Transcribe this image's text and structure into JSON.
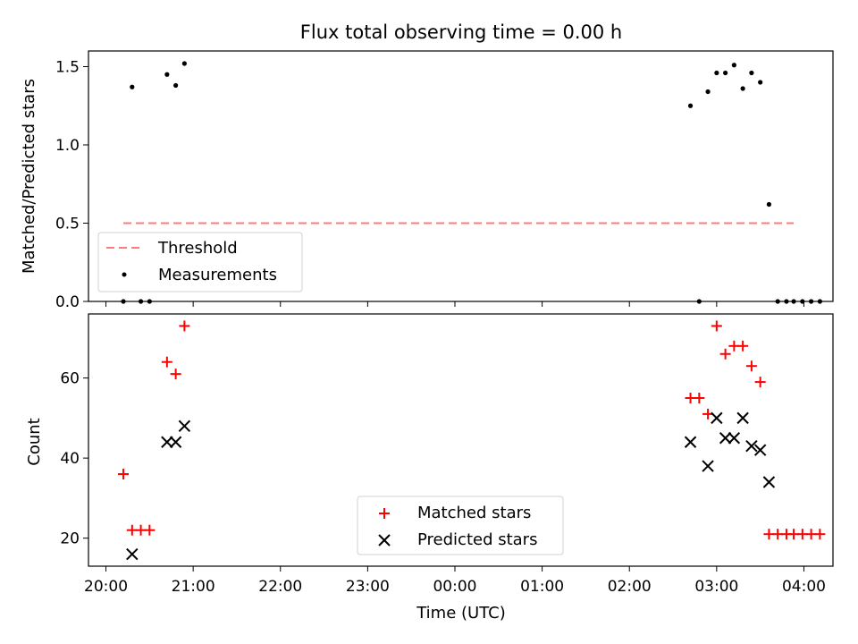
{
  "chart_data": [
    {
      "type": "scatter",
      "title": "Flux total observing time = 0.00 h",
      "xlabel": "",
      "ylabel": "Matched/Predicted stars",
      "xlim": [
        "19:48",
        "04:20"
      ],
      "ylim": [
        0,
        1.6
      ],
      "grid": false,
      "yticks": [
        "0.0",
        "0.5",
        "1.0",
        "1.5"
      ],
      "legend_position": "lower-left",
      "series": [
        {
          "name": "Threshold",
          "kind": "dashed-line",
          "color": "#ff7b7b",
          "points": [
            [
              "20:12",
              0.5
            ],
            [
              "03:53",
              0.5
            ]
          ]
        },
        {
          "name": "Measurements",
          "kind": "dot",
          "color": "#000000",
          "points": [
            [
              "20:12",
              0.0
            ],
            [
              "20:18",
              1.37
            ],
            [
              "20:24",
              0.0
            ],
            [
              "20:30",
              0.0
            ],
            [
              "20:42",
              1.45
            ],
            [
              "20:48",
              1.38
            ],
            [
              "20:54",
              1.52
            ],
            [
              "02:42",
              1.25
            ],
            [
              "02:48",
              0.0
            ],
            [
              "02:54",
              1.34
            ],
            [
              "03:00",
              1.46
            ],
            [
              "03:06",
              1.46
            ],
            [
              "03:12",
              1.51
            ],
            [
              "03:18",
              1.36
            ],
            [
              "03:24",
              1.46
            ],
            [
              "03:30",
              1.4
            ],
            [
              "03:36",
              0.62
            ],
            [
              "03:42",
              0.0
            ],
            [
              "03:48",
              0.0
            ],
            [
              "03:53",
              0.0
            ],
            [
              "03:59",
              0.0
            ],
            [
              "04:05",
              0.0
            ],
            [
              "04:11",
              0.0
            ]
          ]
        }
      ]
    },
    {
      "type": "scatter",
      "title": "",
      "xlabel": "Time (UTC)",
      "ylabel": "Count",
      "xlim": [
        "19:48",
        "04:20"
      ],
      "ylim": [
        13,
        76
      ],
      "grid": false,
      "yticks": [
        "20",
        "40",
        "60"
      ],
      "xticks": [
        "20:00",
        "21:00",
        "22:00",
        "23:00",
        "00:00",
        "01:00",
        "02:00",
        "03:00",
        "04:00"
      ],
      "legend_position": "lower-center",
      "series": [
        {
          "name": "Matched stars",
          "marker": "plus",
          "color": "#ff0000",
          "points": [
            [
              "20:12",
              36
            ],
            [
              "20:18",
              22
            ],
            [
              "20:24",
              22
            ],
            [
              "20:30",
              22
            ],
            [
              "20:42",
              64
            ],
            [
              "20:48",
              61
            ],
            [
              "20:54",
              73
            ],
            [
              "02:42",
              55
            ],
            [
              "02:48",
              55
            ],
            [
              "02:54",
              51
            ],
            [
              "03:00",
              73
            ],
            [
              "03:06",
              66
            ],
            [
              "03:12",
              68
            ],
            [
              "03:18",
              68
            ],
            [
              "03:24",
              63
            ],
            [
              "03:30",
              59
            ],
            [
              "03:36",
              21
            ],
            [
              "03:42",
              21
            ],
            [
              "03:48",
              21
            ],
            [
              "03:53",
              21
            ],
            [
              "03:59",
              21
            ],
            [
              "04:05",
              21
            ],
            [
              "04:11",
              21
            ]
          ]
        },
        {
          "name": "Predicted stars",
          "marker": "x",
          "color": "#000000",
          "points": [
            [
              "20:18",
              16
            ],
            [
              "20:42",
              44
            ],
            [
              "20:48",
              44
            ],
            [
              "20:54",
              48
            ],
            [
              "02:42",
              44
            ],
            [
              "02:54",
              38
            ],
            [
              "03:00",
              50
            ],
            [
              "03:06",
              45
            ],
            [
              "03:12",
              45
            ],
            [
              "03:18",
              50
            ],
            [
              "03:24",
              43
            ],
            [
              "03:30",
              42
            ],
            [
              "03:36",
              34
            ]
          ]
        }
      ]
    }
  ]
}
